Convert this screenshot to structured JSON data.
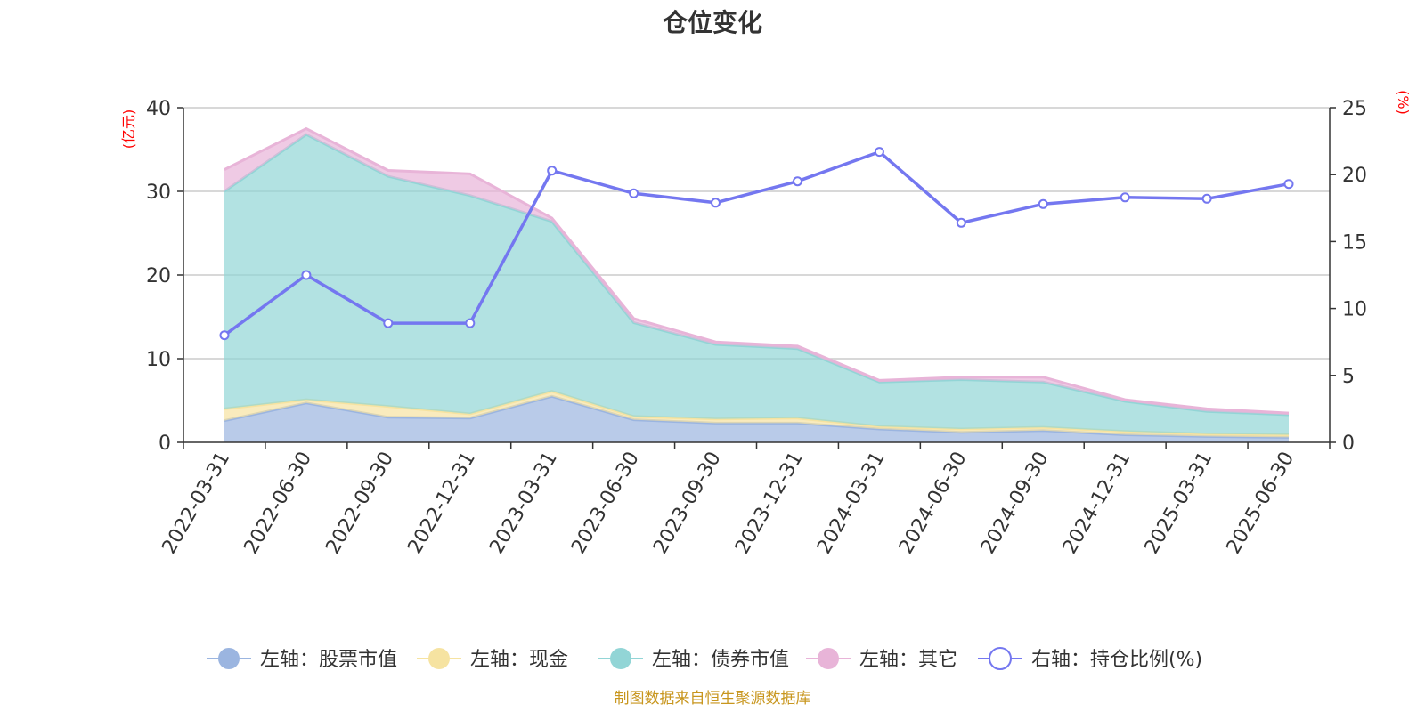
{
  "chart_data": {
    "type": "area",
    "title": "仓位变化",
    "left_axis_unit": "(亿元)",
    "right_axis_unit": "(%)",
    "categories": [
      "2022-03-31",
      "2022-06-30",
      "2022-09-30",
      "2022-12-31",
      "2023-03-31",
      "2023-06-30",
      "2023-09-30",
      "2023-12-31",
      "2024-03-31",
      "2024-06-30",
      "2024-09-30",
      "2024-12-31",
      "2025-03-31",
      "2025-06-30"
    ],
    "ylim_left": [
      0,
      40
    ],
    "yticks_left": [
      0,
      10,
      20,
      30,
      40
    ],
    "ylim_right": [
      0,
      25
    ],
    "yticks_right": [
      0,
      5,
      10,
      15,
      20,
      25
    ],
    "grid": true,
    "stacked": true,
    "series": [
      {
        "name": "左轴：股票市值",
        "axis": "left",
        "kind": "area",
        "color": "#9bb5e0",
        "values": [
          2.6,
          4.7,
          3.0,
          2.9,
          5.5,
          2.7,
          2.3,
          2.3,
          1.6,
          1.2,
          1.4,
          0.9,
          0.7,
          0.6
        ]
      },
      {
        "name": "左轴：现金",
        "axis": "left",
        "kind": "area",
        "color": "#f6e3a1",
        "values": [
          1.4,
          0.4,
          1.3,
          0.5,
          0.6,
          0.4,
          0.5,
          0.6,
          0.3,
          0.4,
          0.4,
          0.4,
          0.3,
          0.3
        ]
      },
      {
        "name": "左轴：债券市值",
        "axis": "left",
        "kind": "area",
        "color": "#92d5d6",
        "values": [
          26.0,
          31.7,
          27.5,
          26.1,
          20.3,
          11.2,
          8.9,
          8.3,
          5.3,
          5.9,
          5.4,
          3.6,
          2.7,
          2.4
        ]
      },
      {
        "name": "左轴：其它",
        "axis": "left",
        "kind": "area",
        "color": "#e8b4d8",
        "values": [
          2.6,
          0.7,
          0.7,
          2.6,
          0.4,
          0.5,
          0.3,
          0.3,
          0.2,
          0.3,
          0.6,
          0.2,
          0.3,
          0.2
        ]
      },
      {
        "name": "右轴：持仓比例(%)",
        "axis": "right",
        "kind": "line",
        "color": "#7477f0",
        "values": [
          8.0,
          12.5,
          8.9,
          8.9,
          20.3,
          18.6,
          17.9,
          19.5,
          21.7,
          16.4,
          17.8,
          18.3,
          18.2,
          19.3
        ]
      }
    ],
    "legend_position": "bottom"
  },
  "source_note": "制图数据来自恒生聚源数据库"
}
